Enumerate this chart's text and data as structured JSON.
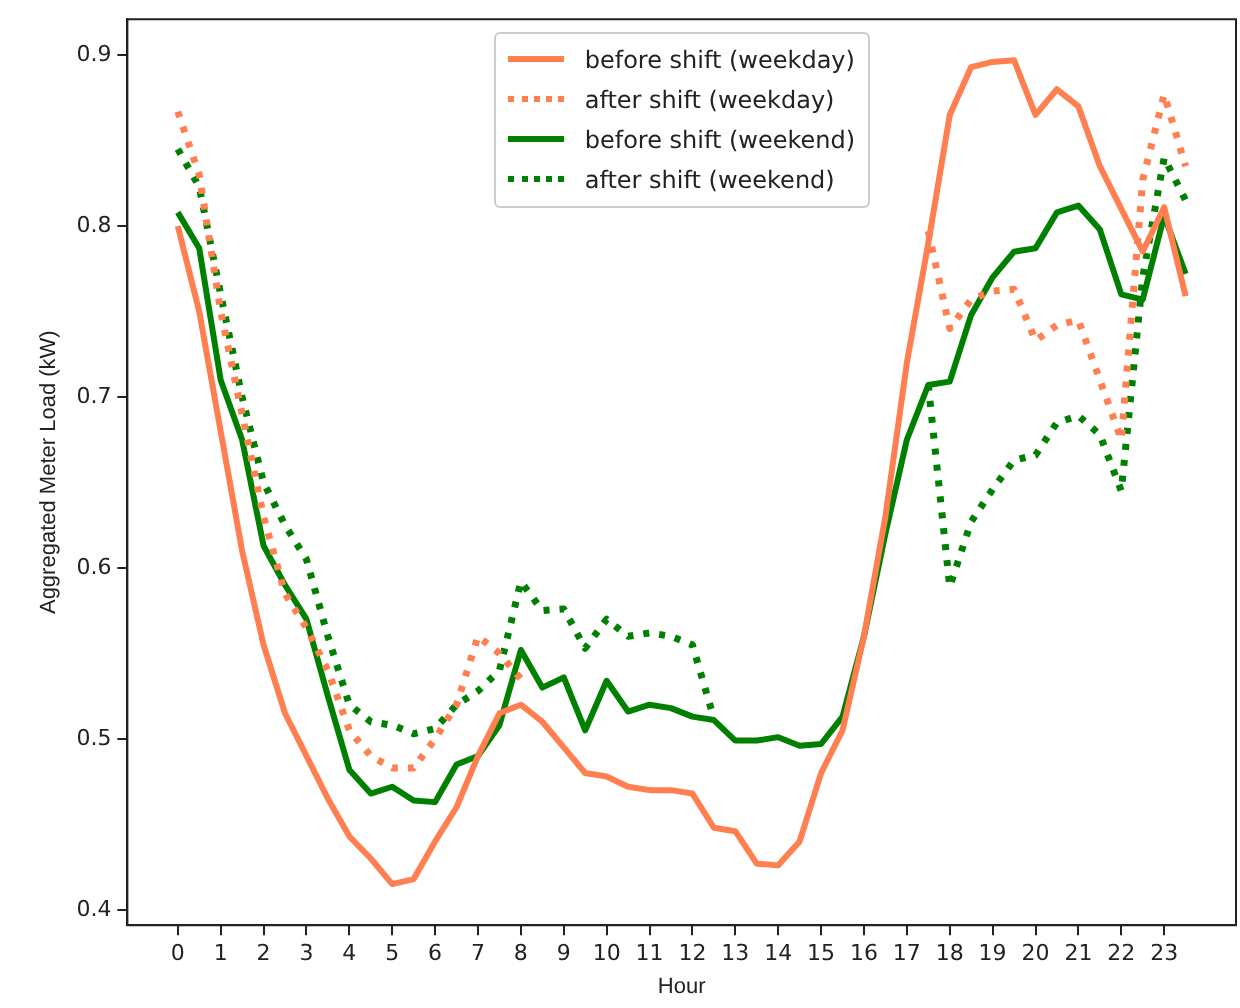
{
  "chart_data": {
    "type": "line",
    "xlabel": "Hour",
    "ylabel": "Aggregated Meter Load (kW)",
    "x": [
      0,
      0.5,
      1,
      1.5,
      2,
      2.5,
      3,
      3.5,
      4,
      4.5,
      5,
      5.5,
      6,
      6.5,
      7,
      7.5,
      8,
      8.5,
      9,
      9.5,
      10,
      10.5,
      11,
      11.5,
      12,
      12.5,
      13,
      13.5,
      14,
      14.5,
      15,
      15.5,
      16,
      16.5,
      17,
      17.5,
      18,
      18.5,
      19,
      19.5,
      20,
      20.5,
      21,
      21.5,
      22,
      22.5,
      23,
      23.5
    ],
    "xlim": [
      -1.175,
      24.675
    ],
    "xticks": [
      0,
      1,
      2,
      3,
      4,
      5,
      6,
      7,
      8,
      9,
      10,
      11,
      12,
      13,
      14,
      15,
      16,
      17,
      18,
      19,
      20,
      21,
      22,
      23
    ],
    "ylim": [
      0.391,
      0.921
    ],
    "yticks": [
      0.4,
      0.5,
      0.6,
      0.7,
      0.8,
      0.9
    ],
    "grid": false,
    "legend": "top",
    "marker": "none",
    "series": [
      {
        "name": "before shift (weekday)",
        "color": "#ff7f50",
        "line_style": "solid",
        "values": [
          0.8,
          0.75,
          0.68,
          0.61,
          0.555,
          0.515,
          0.49,
          0.465,
          0.443,
          0.43,
          0.415,
          0.418,
          0.44,
          0.46,
          0.49,
          0.515,
          0.52,
          0.51,
          0.495,
          0.48,
          0.478,
          0.472,
          0.47,
          0.47,
          0.468,
          0.448,
          0.446,
          0.427,
          0.426,
          0.44,
          0.48,
          0.505,
          0.56,
          0.63,
          0.72,
          0.79,
          0.865,
          0.893,
          0.896,
          0.897,
          0.865,
          0.88,
          0.87,
          0.835,
          0.81,
          0.785,
          0.811,
          0.759
        ]
      },
      {
        "name": "after shift (weekday)",
        "color": "#ff7f50",
        "line_style": "dotted",
        "values": [
          0.867,
          0.83,
          0.75,
          0.69,
          0.63,
          0.585,
          0.565,
          0.54,
          0.505,
          0.49,
          0.483,
          0.483,
          0.5,
          0.52,
          0.56,
          0.55,
          0.535,
          null,
          null,
          null,
          null,
          null,
          null,
          null,
          null,
          null,
          null,
          null,
          null,
          null,
          null,
          null,
          null,
          null,
          null,
          0.797,
          0.74,
          0.757,
          0.762,
          0.763,
          0.733,
          0.742,
          0.745,
          0.71,
          0.675,
          0.827,
          0.877,
          0.835
        ]
      },
      {
        "name": "before shift (weekend)",
        "color": "#008000",
        "line_style": "solid",
        "values": [
          0.808,
          0.787,
          0.71,
          0.675,
          0.613,
          0.59,
          0.57,
          0.525,
          0.482,
          0.468,
          0.472,
          0.464,
          0.463,
          0.485,
          0.49,
          0.508,
          0.552,
          0.53,
          0.536,
          0.505,
          0.534,
          0.516,
          0.52,
          0.518,
          0.513,
          0.511,
          0.499,
          0.499,
          0.501,
          0.496,
          0.497,
          0.513,
          0.56,
          0.62,
          0.675,
          0.707,
          0.709,
          0.748,
          0.77,
          0.785,
          0.787,
          0.808,
          0.812,
          0.798,
          0.76,
          0.757,
          0.806,
          0.772
        ]
      },
      {
        "name": "after shift (weekend)",
        "color": "#008000",
        "line_style": "dotted",
        "values": [
          0.845,
          0.823,
          0.76,
          0.7,
          0.65,
          0.625,
          0.605,
          0.56,
          0.52,
          0.51,
          0.508,
          0.503,
          0.506,
          0.52,
          0.528,
          0.54,
          0.592,
          0.575,
          0.576,
          0.553,
          0.57,
          0.56,
          0.562,
          0.56,
          0.555,
          0.512,
          null,
          null,
          null,
          null,
          null,
          null,
          null,
          null,
          null,
          0.707,
          0.589,
          0.627,
          0.646,
          0.663,
          0.666,
          0.685,
          0.689,
          0.678,
          0.645,
          0.77,
          0.84,
          0.815
        ]
      }
    ]
  }
}
